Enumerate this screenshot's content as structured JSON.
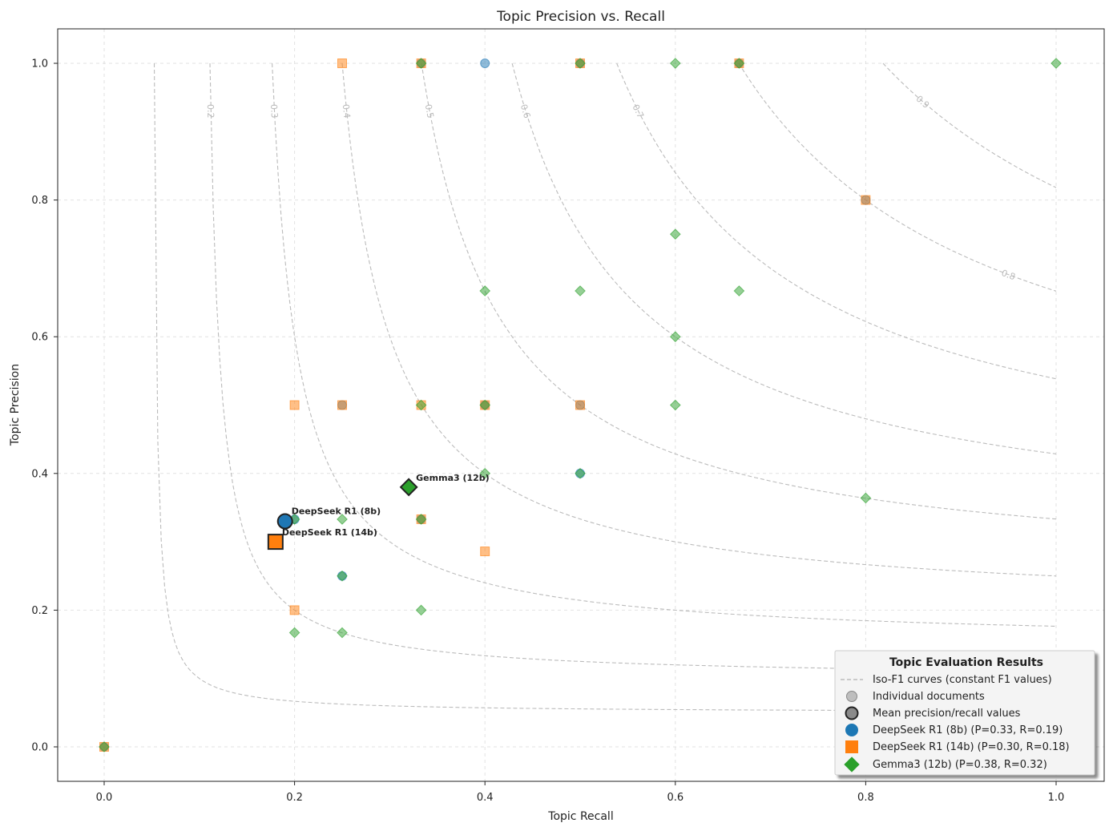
{
  "chart_data": {
    "type": "scatter",
    "title": "Topic Precision vs. Recall",
    "xlabel": "Topic Recall",
    "ylabel": "Topic Precision",
    "xlim": [
      -0.05,
      1.05
    ],
    "ylim": [
      -0.05,
      1.05
    ],
    "xticks": [
      "0.0",
      "0.2",
      "0.4",
      "0.6",
      "0.8",
      "1.0"
    ],
    "yticks": [
      "0.0",
      "0.2",
      "0.4",
      "0.6",
      "0.8",
      "1.0"
    ],
    "grid": true,
    "iso_f1": {
      "values": [
        0.1,
        0.2,
        0.3,
        0.4,
        0.5,
        0.6,
        0.7,
        0.8,
        0.9
      ],
      "labels": [
        "",
        "0.2",
        "0.3",
        "0.4",
        "0.5",
        "0.6",
        "0.7",
        "0.8",
        "0.9"
      ]
    },
    "series": [
      {
        "name": "DeepSeek R1 (8b)",
        "marker": "circle",
        "color": "#1f77b4",
        "points": [
          [
            0,
            0
          ],
          [
            0.4,
            1.0
          ],
          [
            0.25,
            0.5
          ],
          [
            0.333,
            0.333
          ],
          [
            0.5,
            0.5
          ],
          [
            0.8,
            0.8
          ],
          [
            0.667,
            1.0
          ],
          [
            0.5,
            1.0
          ],
          [
            0.333,
            1.0
          ],
          [
            0.25,
            0.25
          ],
          [
            0.2,
            0.333
          ],
          [
            0.4,
            0.5
          ],
          [
            0.5,
            0.4
          ]
        ],
        "mean": [
          0.19,
          0.33
        ]
      },
      {
        "name": "DeepSeek R1 (14b)",
        "marker": "square",
        "color": "#ff7f0e",
        "points": [
          [
            0,
            0
          ],
          [
            0.25,
            1.0
          ],
          [
            0.2,
            0.5
          ],
          [
            0.2,
            0.2
          ],
          [
            0.4,
            0.286
          ],
          [
            0.25,
            0.5
          ],
          [
            0.333,
            0.5
          ],
          [
            0.4,
            0.5
          ],
          [
            0.5,
            0.5
          ],
          [
            0.333,
            0.333
          ],
          [
            0.8,
            0.8
          ],
          [
            0.5,
            1.0
          ],
          [
            0.667,
            1.0
          ],
          [
            0.333,
            1.0
          ]
        ],
        "mean": [
          0.18,
          0.3
        ]
      },
      {
        "name": "Gemma3 (12b)",
        "marker": "diamond",
        "color": "#2ca02c",
        "points": [
          [
            0,
            0
          ],
          [
            0.2,
            0.167
          ],
          [
            0.25,
            0.167
          ],
          [
            0.333,
            0.2
          ],
          [
            0.25,
            0.25
          ],
          [
            0.2,
            0.333
          ],
          [
            0.25,
            0.333
          ],
          [
            0.333,
            0.333
          ],
          [
            0.4,
            0.4
          ],
          [
            0.5,
            0.4
          ],
          [
            0.8,
            0.364
          ],
          [
            0.333,
            0.5
          ],
          [
            0.4,
            0.5
          ],
          [
            0.6,
            0.5
          ],
          [
            0.6,
            0.6
          ],
          [
            0.4,
            0.667
          ],
          [
            0.5,
            0.667
          ],
          [
            0.667,
            0.667
          ],
          [
            0.6,
            0.75
          ],
          [
            0.333,
            1.0
          ],
          [
            0.5,
            1.0
          ],
          [
            0.6,
            1.0
          ],
          [
            0.667,
            1.0
          ],
          [
            1.0,
            1.0
          ]
        ],
        "mean": [
          0.32,
          0.38
        ]
      }
    ],
    "annotations": [
      "DeepSeek R1 (8b)",
      "DeepSeek R1 (14b)",
      "Gemma3 (12b)"
    ],
    "legend": {
      "placement": "lower-right",
      "title": "Topic Evaluation Results",
      "entries": [
        "Iso-F1 curves (constant F1 values)",
        "Individual documents",
        "Mean precision/recall values",
        "DeepSeek R1 (8b) (P=0.33, R=0.19)",
        "DeepSeek R1 (14b) (P=0.30, R=0.18)",
        "Gemma3 (12b) (P=0.38, R=0.32)"
      ]
    }
  }
}
